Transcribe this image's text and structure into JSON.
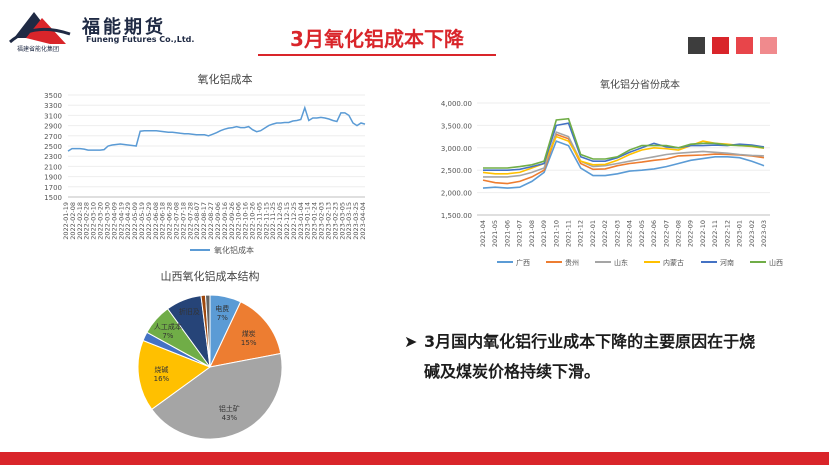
{
  "header": {
    "logo_cn": "福能期货",
    "logo_en": "Funeng Futures Co.,Ltd.",
    "logo_group": "福建省能化集团",
    "title": "3月氧化铝成本下降",
    "squares": [
      "#3d3d3d",
      "#d9252a",
      "#e8454a",
      "#f08a8d"
    ]
  },
  "bullet": {
    "line1": "3月国内氧化铝行业成本下降的主要原因在于烧",
    "line2": "碱及煤炭价格持续下滑。"
  },
  "chart_data": [
    {
      "type": "line",
      "title": "氧化铝成本",
      "legend": [
        "氧化铝成本"
      ],
      "legend_position": "bottom",
      "color": "#5b9bd5",
      "ylim": [
        1500,
        3500
      ],
      "yticks": [
        1500,
        1700,
        1900,
        2100,
        2300,
        2500,
        2700,
        2900,
        3100,
        3300,
        3500
      ],
      "xticks": [
        "2022-01-19",
        "2022-02-08",
        "2022-02-18",
        "2022-02-28",
        "2022-03-10",
        "2022-03-20",
        "2022-03-30",
        "2022-04-09",
        "2022-04-19",
        "2022-04-29",
        "2022-05-09",
        "2022-05-19",
        "2022-05-29",
        "2022-06-08",
        "2022-06-18",
        "2022-06-28",
        "2022-07-08",
        "2022-07-18",
        "2022-07-28",
        "2022-08-07",
        "2022-08-17",
        "2022-08-27",
        "2022-09-06",
        "2022-09-16",
        "2022-09-26",
        "2022-10-06",
        "2022-10-16",
        "2022-10-26",
        "2022-11-05",
        "2022-11-15",
        "2022-11-25",
        "2022-12-05",
        "2022-12-15",
        "2022-12-25",
        "2023-01-04",
        "2023-01-14",
        "2023-01-24",
        "2023-02-03",
        "2023-02-13",
        "2023-02-23",
        "2023-03-05",
        "2023-03-15",
        "2023-03-25",
        "2023-04-04"
      ],
      "values": [
        2400,
        2450,
        2450,
        2450,
        2440,
        2420,
        2420,
        2420,
        2420,
        2430,
        2500,
        2520,
        2530,
        2540,
        2530,
        2520,
        2510,
        2500,
        2790,
        2800,
        2800,
        2800,
        2800,
        2790,
        2780,
        2770,
        2770,
        2760,
        2750,
        2740,
        2740,
        2730,
        2720,
        2720,
        2720,
        2700,
        2730,
        2760,
        2800,
        2830,
        2850,
        2860,
        2880,
        2860,
        2860,
        2880,
        2820,
        2780,
        2800,
        2850,
        2900,
        2930,
        2950,
        2950,
        2960,
        2960,
        2990,
        3000,
        3020,
        3250,
        3000,
        3050,
        3050,
        3060,
        3050,
        3030,
        3000,
        2980,
        3150,
        3150,
        3100,
        2950,
        2900,
        2950,
        2930
      ]
    },
    {
      "type": "line",
      "title": "氧化铝分省份成本",
      "legend_position": "bottom",
      "ylim": [
        1500,
        4000
      ],
      "yticks": [
        "1,500.00",
        "2,000.00",
        "2,500.00",
        "3,000.00",
        "3,500.00",
        "4,000.00"
      ],
      "x": [
        "2021-04",
        "2021-05",
        "2021-06",
        "2021-07",
        "2021-08",
        "2021-09",
        "2021-10",
        "2021-11",
        "2021-12",
        "2022-01",
        "2022-02",
        "2022-03",
        "2022-04",
        "2022-05",
        "2022-06",
        "2022-07",
        "2022-08",
        "2022-09",
        "2022-10",
        "2022-11",
        "2022-12",
        "2023-01",
        "2023-02",
        "2023-03"
      ],
      "series": [
        {
          "name": "广西",
          "color": "#5b9bd5",
          "values": [
            2100,
            2120,
            2100,
            2120,
            2250,
            2450,
            3150,
            3050,
            2550,
            2380,
            2380,
            2420,
            2480,
            2500,
            2530,
            2580,
            2650,
            2720,
            2760,
            2800,
            2800,
            2780,
            2700,
            2600
          ]
        },
        {
          "name": "贵州",
          "color": "#ed7d31",
          "values": [
            2280,
            2220,
            2200,
            2250,
            2350,
            2500,
            3300,
            3200,
            2650,
            2520,
            2530,
            2600,
            2650,
            2680,
            2720,
            2750,
            2820,
            2830,
            2840,
            2860,
            2850,
            2840,
            2820,
            2780
          ]
        },
        {
          "name": "山东",
          "color": "#a5a5a5",
          "values": [
            2350,
            2350,
            2350,
            2380,
            2450,
            2550,
            3350,
            3250,
            2700,
            2580,
            2600,
            2650,
            2700,
            2750,
            2800,
            2850,
            2880,
            2900,
            2920,
            2900,
            2880,
            2850,
            2830,
            2820
          ]
        },
        {
          "name": "内蒙古",
          "color": "#ffc000",
          "values": [
            2450,
            2420,
            2420,
            2450,
            2550,
            2650,
            3250,
            3150,
            2700,
            2620,
            2630,
            2720,
            2850,
            2950,
            3000,
            2980,
            2950,
            3050,
            3150,
            3100,
            3080,
            3050,
            3030,
            2990
          ]
        },
        {
          "name": "河南",
          "color": "#4472c4",
          "values": [
            2500,
            2500,
            2500,
            2520,
            2580,
            2650,
            3500,
            3550,
            2800,
            2700,
            2700,
            2780,
            2900,
            3000,
            3100,
            3020,
            3000,
            3050,
            3050,
            3060,
            3050,
            3080,
            3060,
            3020
          ]
        },
        {
          "name": "山西",
          "color": "#70ad47",
          "values": [
            2550,
            2550,
            2550,
            2580,
            2620,
            2700,
            3620,
            3650,
            2850,
            2750,
            2750,
            2800,
            2950,
            3050,
            3050,
            3050,
            3000,
            3080,
            3100,
            3100,
            3060,
            3050,
            3040,
            3000
          ]
        }
      ]
    },
    {
      "type": "pie",
      "title": "山西氧化铝成本结构",
      "slices": [
        {
          "label": "电费",
          "value": 7,
          "pct_text": "7%",
          "color": "#5b9bd5"
        },
        {
          "label": "煤炭",
          "value": 15,
          "pct_text": "15%",
          "color": "#ed7d31"
        },
        {
          "label": "铝土矿",
          "value": 43,
          "pct_text": "43%",
          "color": "#a5a5a5"
        },
        {
          "label": "烧碱",
          "value": 16,
          "pct_text": "16%",
          "color": "#ffc000"
        },
        {
          "label": "",
          "value": 2,
          "pct_text": "",
          "color": "#4472c4"
        },
        {
          "label": "人工成本",
          "value": 7,
          "pct_text": "7%",
          "color": "#70ad47"
        },
        {
          "label": "折旧及",
          "value": 8,
          "pct_text": "",
          "color": "#264478"
        },
        {
          "label": "",
          "value": 1,
          "pct_text": "",
          "color": "#9e480e"
        },
        {
          "label": "",
          "value": 1,
          "pct_text": "",
          "color": "#636363"
        }
      ]
    }
  ]
}
